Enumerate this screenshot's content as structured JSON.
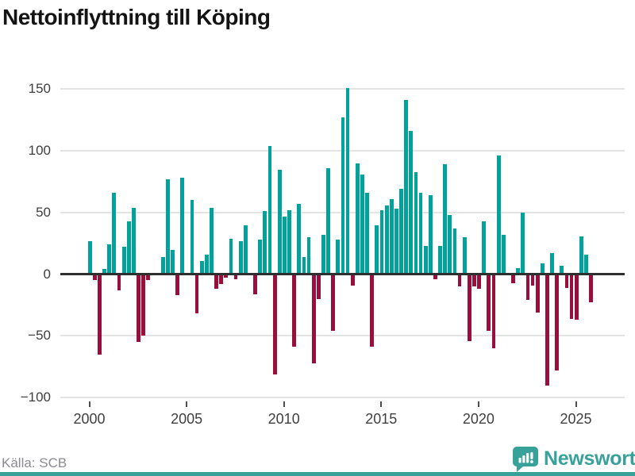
{
  "title": "Nettoinflyttning till Köping",
  "source": "Källa: SCB",
  "logo": {
    "text": "Newsworthy",
    "icon": "newsworthy-chart-bubble-icon"
  },
  "colors": {
    "positive_bar": "#00a39b",
    "negative_bar": "#9a0e3b",
    "gridline": "#e3e3e3",
    "zero_line": "#2f2f2f",
    "axis_text": "#3f3f3f",
    "brand_teal": "#38a19a"
  },
  "chart_data": {
    "type": "bar",
    "title": "Nettoinflyttning till Köping",
    "xlabel": "",
    "ylabel": "",
    "start": "2000-Q1",
    "frequency": "quarterly",
    "ylim": [
      -100,
      150
    ],
    "grid": "horizontal",
    "y_ticks": [
      150,
      100,
      50,
      0,
      -50,
      -100
    ],
    "y_tick_labels": [
      "150",
      "100",
      "50",
      "0",
      "−50",
      "−100"
    ],
    "x_tick_labels": [
      "2000",
      "2005",
      "2010",
      "2015",
      "2020",
      "2025"
    ],
    "x_tick_quarter_index": [
      0,
      20,
      40,
      60,
      80,
      100
    ],
    "categories": [
      "2000Q1",
      "2000Q2",
      "2000Q3",
      "2000Q4",
      "2001Q1",
      "2001Q2",
      "2001Q3",
      "2001Q4",
      "2002Q1",
      "2002Q2",
      "2002Q3",
      "2002Q4",
      "2003Q1",
      "2003Q2",
      "2003Q3",
      "2003Q4",
      "2004Q1",
      "2004Q2",
      "2004Q3",
      "2004Q4",
      "2005Q1",
      "2005Q2",
      "2005Q3",
      "2005Q4",
      "2006Q1",
      "2006Q2",
      "2006Q3",
      "2006Q4",
      "2007Q1",
      "2007Q2",
      "2007Q3",
      "2007Q4",
      "2008Q1",
      "2008Q2",
      "2008Q3",
      "2008Q4",
      "2009Q1",
      "2009Q2",
      "2009Q3",
      "2009Q4",
      "2010Q1",
      "2010Q2",
      "2010Q3",
      "2010Q4",
      "2011Q1",
      "2011Q2",
      "2011Q3",
      "2011Q4",
      "2012Q1",
      "2012Q2",
      "2012Q3",
      "2012Q4",
      "2013Q1",
      "2013Q2",
      "2013Q3",
      "2013Q4",
      "2014Q1",
      "2014Q2",
      "2014Q3",
      "2014Q4",
      "2015Q1",
      "2015Q2",
      "2015Q3",
      "2015Q4",
      "2016Q1",
      "2016Q2",
      "2016Q3",
      "2016Q4",
      "2017Q1",
      "2017Q2",
      "2017Q3",
      "2017Q4",
      "2018Q1",
      "2018Q2",
      "2018Q3",
      "2018Q4",
      "2019Q1",
      "2019Q2",
      "2019Q3",
      "2019Q4",
      "2020Q1",
      "2020Q2",
      "2020Q3",
      "2020Q4",
      "2021Q1",
      "2021Q2",
      "2021Q3",
      "2021Q4",
      "2022Q1",
      "2022Q2",
      "2022Q3",
      "2022Q4",
      "2023Q1",
      "2023Q2",
      "2023Q3",
      "2023Q4",
      "2024Q1",
      "2024Q2",
      "2024Q3",
      "2024Q4",
      "2025Q1",
      "2025Q2",
      "2025Q3",
      "2025Q4"
    ],
    "values": [
      27,
      -5,
      -65,
      4,
      24,
      66,
      -13,
      22,
      43,
      54,
      -55,
      -50,
      -5,
      0,
      0,
      14,
      77,
      20,
      -17,
      78,
      0,
      60,
      -32,
      11,
      16,
      54,
      -12,
      -8,
      -3,
      29,
      -4,
      27,
      40,
      0,
      -16,
      28,
      51,
      104,
      -81,
      85,
      47,
      52,
      -59,
      57,
      14,
      30,
      -72,
      -20,
      32,
      86,
      -46,
      28,
      127,
      151,
      -9,
      90,
      81,
      66,
      -59,
      40,
      52,
      56,
      61,
      53,
      69,
      141,
      116,
      83,
      66,
      23,
      64,
      -4,
      23,
      89,
      48,
      37,
      -10,
      30,
      -54,
      -10,
      -12,
      43,
      -46,
      -60,
      96,
      32,
      0,
      -7,
      5,
      50,
      -21,
      -9,
      -31,
      9,
      -90,
      17,
      -78,
      7,
      -11,
      -36,
      -37,
      31,
      16,
      -23
    ]
  }
}
